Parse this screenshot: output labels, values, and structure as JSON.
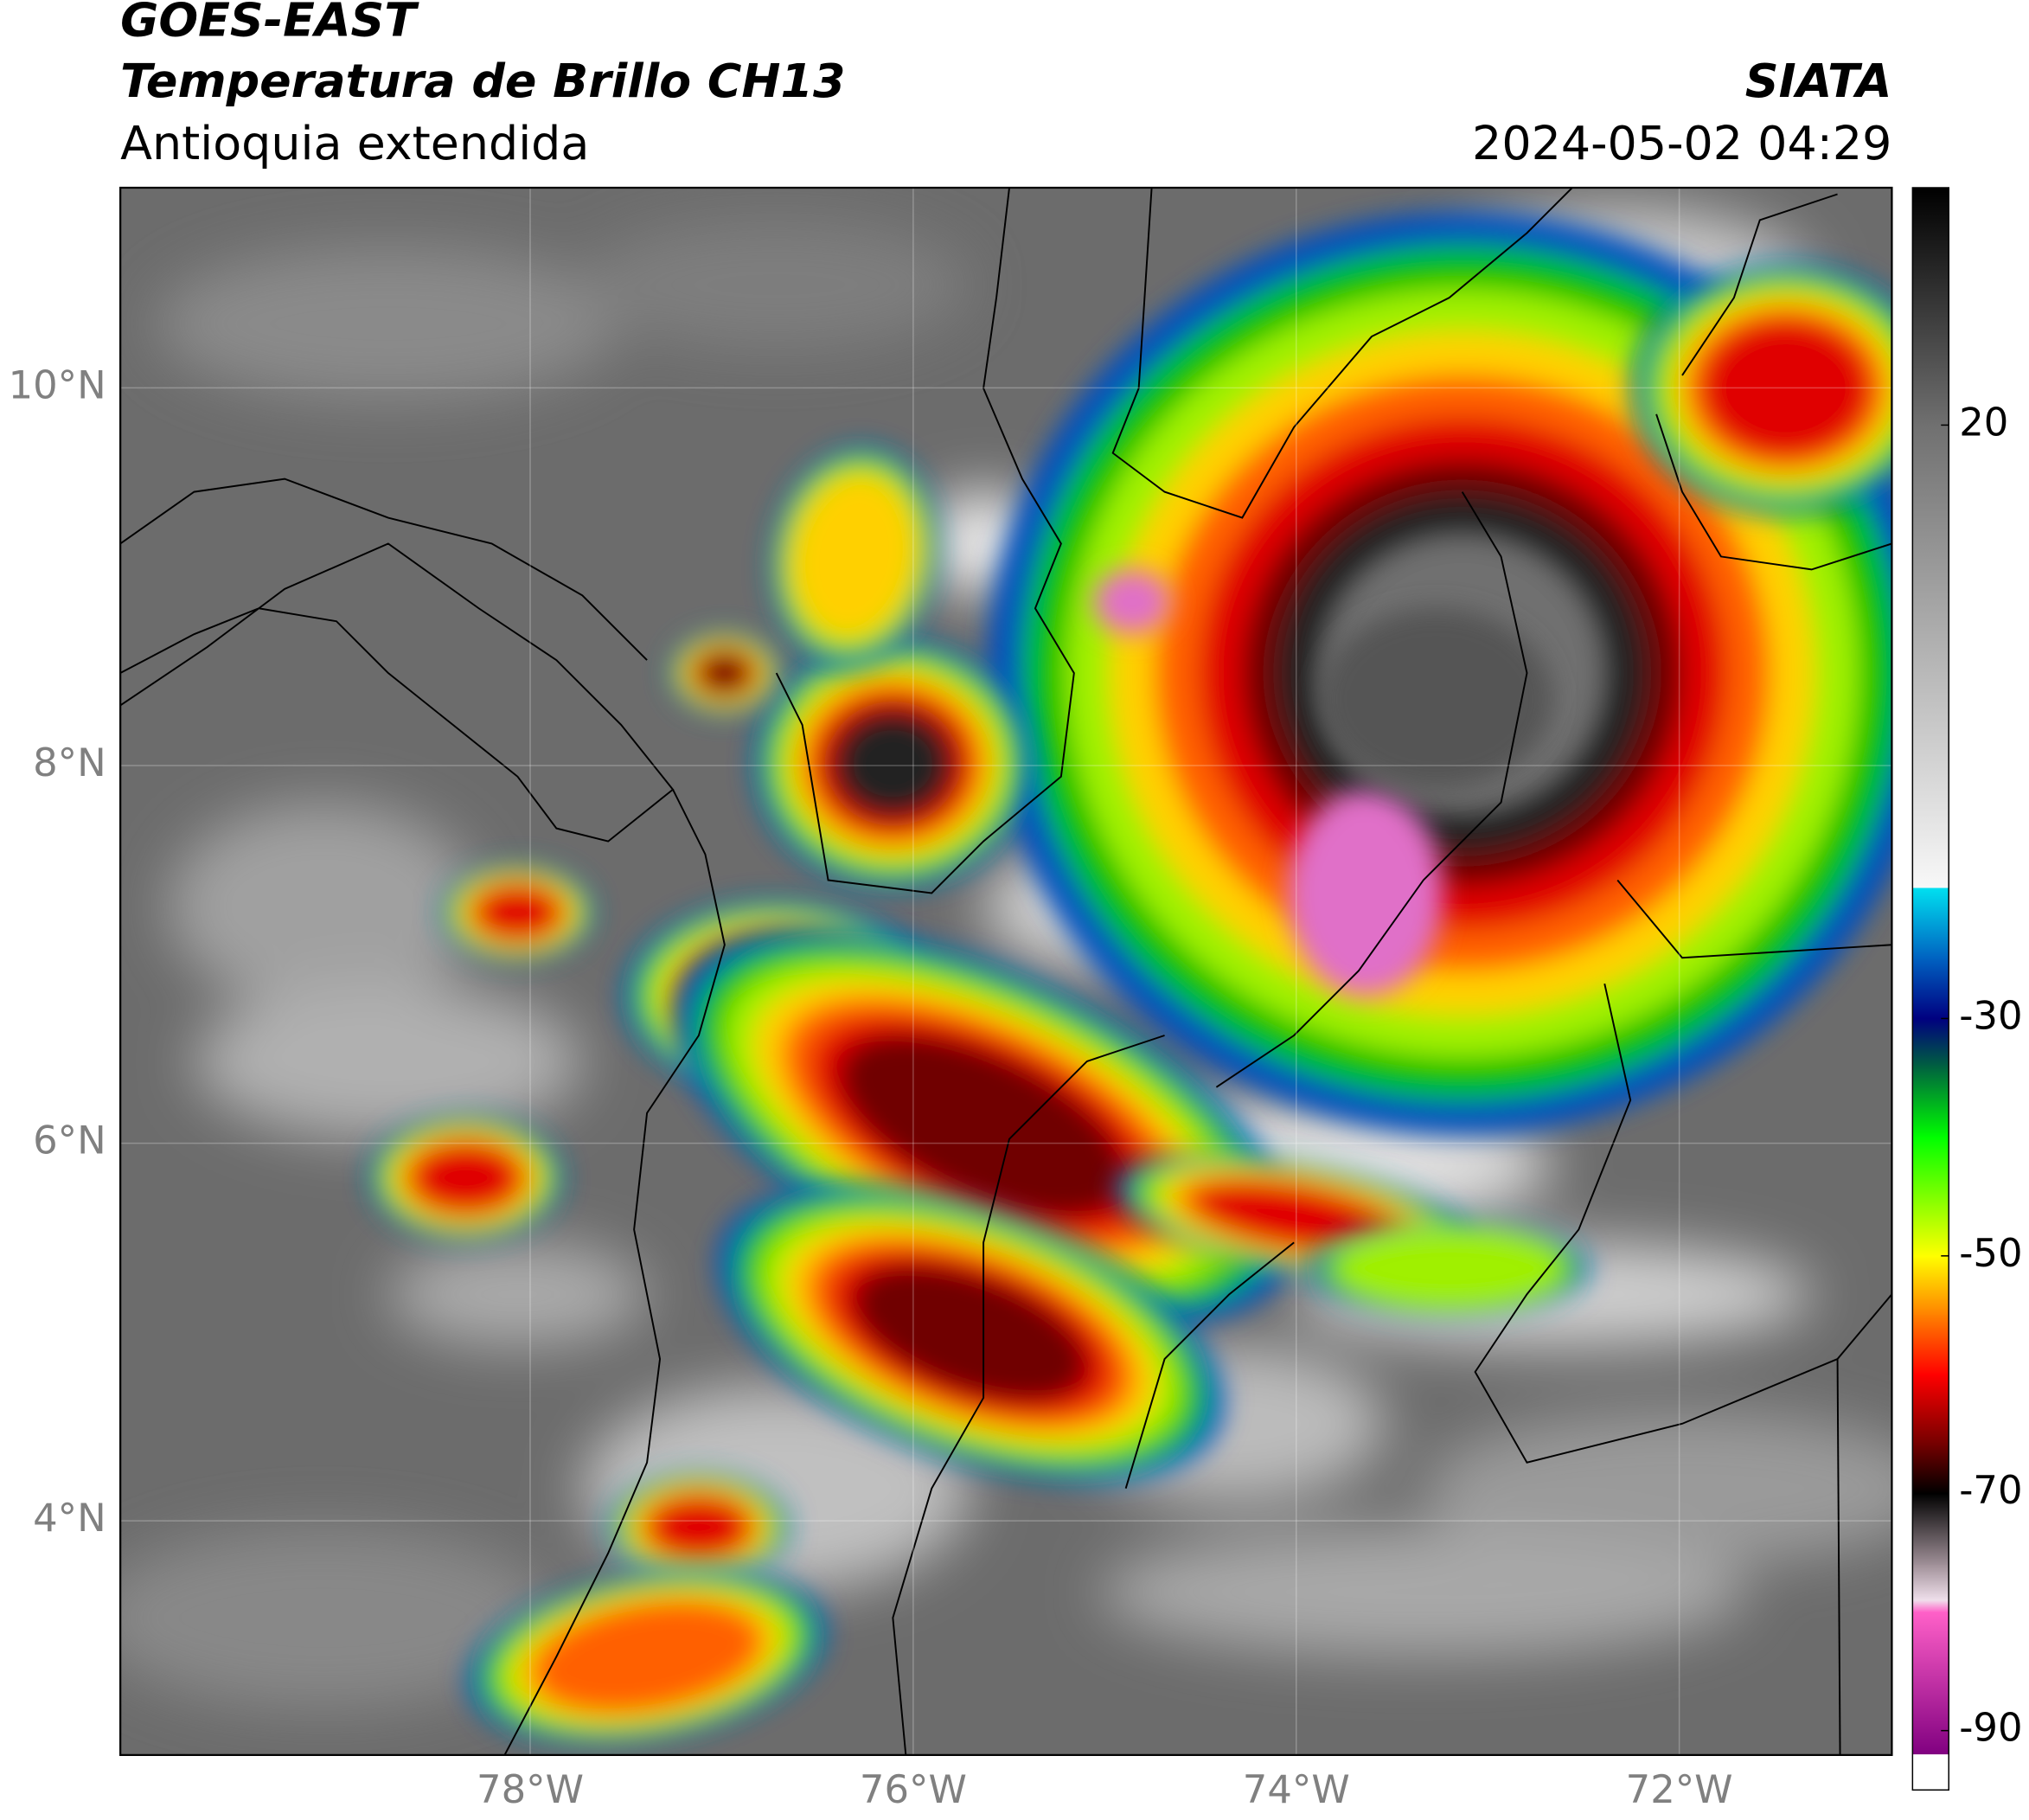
{
  "header": {
    "title": "GOES-EAST",
    "subtitle": "Temperatura de Brillo CH13",
    "region": "Antioquia extendida",
    "source": "SIATA",
    "datetime": "2024-05-02 04:29"
  },
  "map": {
    "xlim": [
      -80.14,
      -70.89
    ],
    "ylim": [
      2.76,
      11.06
    ],
    "xticks": [
      {
        "value": -78,
        "label": "78°W"
      },
      {
        "value": -76,
        "label": "76°W"
      },
      {
        "value": -74,
        "label": "74°W"
      },
      {
        "value": -72,
        "label": "72°W"
      }
    ],
    "yticks": [
      {
        "value": 10,
        "label": "10°N"
      },
      {
        "value": 8,
        "label": "8°N"
      },
      {
        "value": 6,
        "label": "6°N"
      },
      {
        "value": 4,
        "label": "4°N"
      }
    ],
    "grid": true
  },
  "colorbar": {
    "clim": [
      -95,
      40
    ],
    "ticks": [
      20,
      -30,
      -50,
      -70,
      -90
    ],
    "stops": [
      {
        "value": 40,
        "color": "#000000"
      },
      {
        "value": 20,
        "color": "#707070"
      },
      {
        "value": -19,
        "color": "#f8f8f8"
      },
      {
        "value": -19,
        "color": "#00e0f0"
      },
      {
        "value": -25,
        "color": "#0060c0"
      },
      {
        "value": -30,
        "color": "#000080"
      },
      {
        "value": -34,
        "color": "#006040"
      },
      {
        "value": -40,
        "color": "#00ff00"
      },
      {
        "value": -50,
        "color": "#ffff00"
      },
      {
        "value": -55,
        "color": "#ff8000"
      },
      {
        "value": -60,
        "color": "#ff0000"
      },
      {
        "value": -66,
        "color": "#700000"
      },
      {
        "value": -70,
        "color": "#000000"
      },
      {
        "value": -76,
        "color": "#a09098"
      },
      {
        "value": -79,
        "color": "#f0e0ec"
      },
      {
        "value": -80,
        "color": "#ff60c8"
      },
      {
        "value": -92,
        "color": "#800080"
      },
      {
        "value": -92,
        "color": "#ffffff"
      },
      {
        "value": -95,
        "color": "#ffffff"
      }
    ]
  }
}
